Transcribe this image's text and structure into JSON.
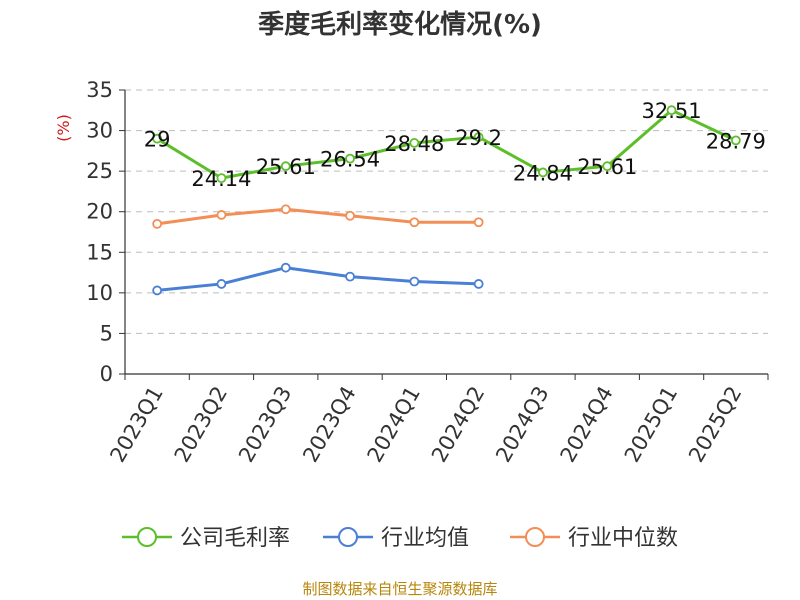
{
  "chart_data": {
    "type": "line",
    "title": "季度毛利率变化情况(%)",
    "ylabel": "(%)",
    "ylim": [
      0,
      35
    ],
    "yticks": [
      0,
      5,
      10,
      15,
      20,
      25,
      30,
      35
    ],
    "grid": true,
    "legend_position": "bottom",
    "categories": [
      "2023Q1",
      "2023Q2",
      "2023Q3",
      "2023Q4",
      "2024Q1",
      "2024Q2",
      "2024Q3",
      "2024Q4",
      "2025Q1",
      "2025Q2"
    ],
    "series": [
      {
        "name": "公司毛利率",
        "color": "#5cbf2a",
        "values": [
          29,
          24.14,
          25.61,
          26.54,
          28.48,
          29.2,
          24.84,
          25.61,
          32.51,
          28.79
        ],
        "labels": [
          "29",
          "24.14",
          "25.61",
          "26.54",
          "28.48",
          "29.2",
          "24.84",
          "25.61",
          "32.51",
          "28.79"
        ]
      },
      {
        "name": "行业均值",
        "color": "#4a7fd6",
        "values": [
          10.3,
          11.1,
          13.1,
          12.0,
          11.4,
          11.1,
          null,
          null,
          null,
          null
        ]
      },
      {
        "name": "行业中位数",
        "color": "#f28e56",
        "values": [
          18.5,
          19.6,
          20.3,
          19.5,
          18.7,
          18.7,
          null,
          null,
          null,
          null
        ]
      }
    ],
    "source": "制图数据来自恒生聚源数据库",
    "ylabel_color": "#d11919"
  }
}
